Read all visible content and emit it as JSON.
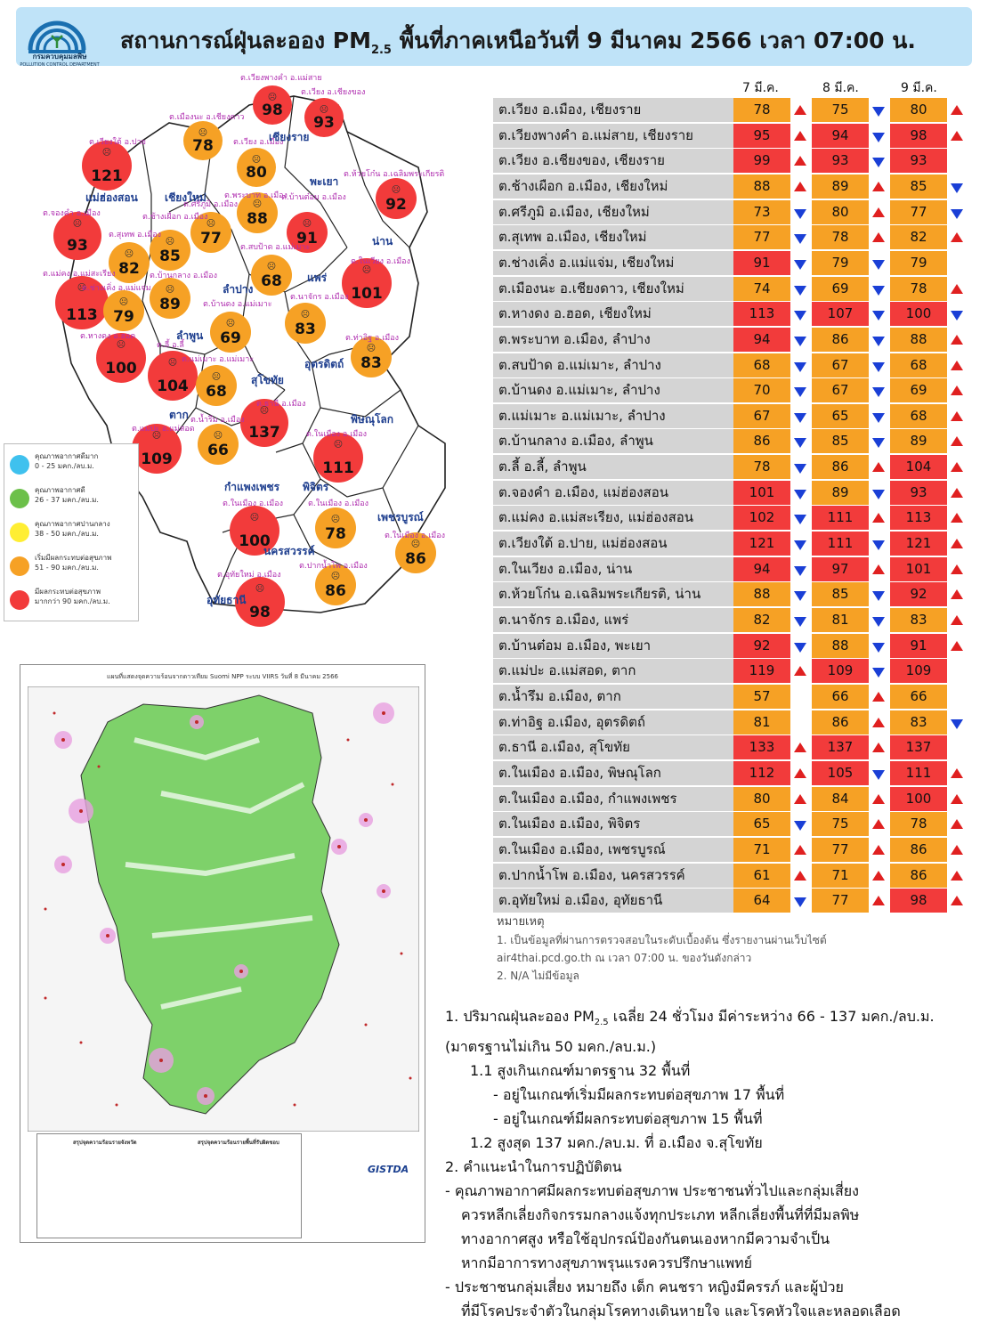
{
  "header": {
    "title_pre": "สถานการณ์ฝุ่นละออง PM",
    "title_sub": "2.5",
    "title_post": " พื้นที่ภาคเหนือวันที่ 9 มีนาคม 2566 เวลา 07:00 น.",
    "logo_text": "กรมควบคุมมลพิษ",
    "logo_text_en": "POLLUTION CONTROL DEPARTMENT"
  },
  "colors": {
    "red": "#f23b3b",
    "orange": "#f6a125",
    "green": "#6cc04a",
    "yellow": "#ffee33",
    "blue": "#3fc1ee"
  },
  "map": {
    "provinces": [
      "เชียงราย",
      "พะเยา",
      "แม่ฮ่องสอน",
      "เชียงใหม่",
      "น่าน",
      "แพร่",
      "ลำปาง",
      "ลำพูน",
      "อุตรดิตถ์",
      "สุโขทัย",
      "ตาก",
      "พิษณุโลก",
      "กำแพงเพชร",
      "พิจิตร",
      "เพชรบูรณ์",
      "นครสวรรค์",
      "อุทัยธานี"
    ],
    "stations": [
      {
        "label": "ต.เวียงพางคำ อ.แม่สาย",
        "value": "98",
        "level": "red"
      },
      {
        "label": "ต.เวียง อ.เชียงของ",
        "value": "93",
        "level": "red"
      },
      {
        "label": "ต.เมืองนะ อ.เชียงดาว",
        "value": "78",
        "level": "orange"
      },
      {
        "label": "ต.เวียง อ.เมือง",
        "value": "80",
        "level": "orange"
      },
      {
        "label": "ต.เวียงใต้ อ.ปาย",
        "value": "121",
        "level": "red"
      },
      {
        "label": "ต.ห้วยโก๋น อ.เฉลิมพระเกียรติ",
        "value": "92",
        "level": "red"
      },
      {
        "label": "ต.พระบาท อ.เมือง",
        "value": "88",
        "level": "orange"
      },
      {
        "label": "ต.บ้านต๋อม อ.เมือง",
        "value": "91",
        "level": "red"
      },
      {
        "label": "ต.ศรีภูมิ อ.เมือง",
        "value": "77",
        "level": "orange"
      },
      {
        "label": "ต.ช้างเผือก อ.เมือง",
        "value": "85",
        "level": "orange"
      },
      {
        "label": "ต.จองคำ อ.เมือง",
        "value": "93",
        "level": "red"
      },
      {
        "label": "ต.สุเทพ อ.เมือง",
        "value": "82",
        "level": "orange"
      },
      {
        "label": "ต.สบป้าด อ.แม่เมาะ",
        "value": "68",
        "level": "orange"
      },
      {
        "label": "ต.ในเวียง อ.เมือง",
        "value": "101",
        "level": "red"
      },
      {
        "label": "ต.แม่คง อ.แม่สะเรียง",
        "value": "113",
        "level": "red"
      },
      {
        "label": "ต.ช่างเคิ่ง อ.แม่แจ่ม",
        "value": "79",
        "level": "orange"
      },
      {
        "label": "ต.บ้านกลาง อ.เมือง",
        "value": "89",
        "level": "orange"
      },
      {
        "label": "ต.บ้านดง อ.แม่เมาะ",
        "value": "69",
        "level": "orange"
      },
      {
        "label": "ต.นาจักร อ.เมือง",
        "value": "83",
        "level": "orange"
      },
      {
        "label": "ต.ท่าอิฐ อ.เมือง",
        "value": "83",
        "level": "orange"
      },
      {
        "label": "ต.หางดง อ.ฮอด",
        "value": "100",
        "level": "red"
      },
      {
        "label": "ต.ลี้ อ.ลี้",
        "value": "104",
        "level": "red"
      },
      {
        "label": "ต.แม่เมาะ อ.แม่เมาะ",
        "value": "68",
        "level": "orange"
      },
      {
        "label": "ต.ธานี อ.เมือง",
        "value": "137",
        "level": "red"
      },
      {
        "label": "ต.น้ำรึม อ.เมือง",
        "value": "66",
        "level": "orange"
      },
      {
        "label": "ต.แม่ปะ อ.แม่สอด",
        "value": "109",
        "level": "red"
      },
      {
        "label": "ต.ในเมือง อ.เมือง",
        "value": "111",
        "level": "red"
      },
      {
        "label": "ต.ในเมือง อ.เมือง",
        "value": "100",
        "level": "red"
      },
      {
        "label": "ต.ในเมือง อ.เมือง",
        "value": "78",
        "level": "orange"
      },
      {
        "label": "ต.ในเมือง อ.เมือง",
        "value": "86",
        "level": "orange"
      },
      {
        "label": "ต.ปากน้ำโพ อ.เมือง",
        "value": "86",
        "level": "orange"
      },
      {
        "label": "ต.อุทัยใหม่ อ.เมือง",
        "value": "98",
        "level": "red"
      }
    ],
    "legend": [
      {
        "title": "คุณภาพอากาศดีมาก",
        "range": "0 - 25 มคก./ลบ.ม."
      },
      {
        "title": "คุณภาพอากาศดี",
        "range": "26 - 37 มคก./ลบ.ม."
      },
      {
        "title": "คุณภาพอากาศปานกลาง",
        "range": "38 - 50 มคก./ลบ.ม."
      },
      {
        "title": "เริ่มมีผลกระทบต่อสุขภาพ",
        "range": "51 - 90 มคก./ลบ.ม."
      },
      {
        "title": "มีผลกระทบต่อสุขภาพ",
        "range": "มากกว่า 90 มคก./ลบ.ม."
      }
    ]
  },
  "hotspot_map": {
    "title": "แผนที่แสดงจุดความร้อนจากดาวเทียม Suomi NPP ระบบ VIIRS วันที่ 8 มีนาคม 2566",
    "left_summary_title": "สรุปจุดความร้อนรายจังหวัด",
    "right_summary_title": "สรุปจุดความร้อนรายพื้นที่รับผิดชอบ",
    "credit": "GISTDA",
    "legend_title": "สัญลักษณ์"
  },
  "table": {
    "headers": [
      "7 มี.ค.",
      "8 มี.ค.",
      "9 มี.ค."
    ],
    "rows": [
      {
        "name": "ต.เวียง อ.เมือง, เชียงราย",
        "v": [
          [
            "78",
            "orange",
            "up"
          ],
          [
            "75",
            "orange",
            "down"
          ],
          [
            "80",
            "orange",
            "up"
          ]
        ]
      },
      {
        "name": "ต.เวียงพางคำ อ.แม่สาย, เชียงราย",
        "v": [
          [
            "95",
            "red",
            "up"
          ],
          [
            "94",
            "red",
            "down"
          ],
          [
            "98",
            "red",
            "up"
          ]
        ]
      },
      {
        "name": "ต.เวียง อ.เชียงของ, เชียงราย",
        "v": [
          [
            "99",
            "red",
            "up"
          ],
          [
            "93",
            "red",
            "down"
          ],
          [
            "93",
            "red",
            ""
          ]
        ]
      },
      {
        "name": "ต.ช้างเผือก อ.เมือง, เชียงใหม่",
        "v": [
          [
            "88",
            "orange",
            "up"
          ],
          [
            "89",
            "orange",
            "up"
          ],
          [
            "85",
            "orange",
            "down"
          ]
        ]
      },
      {
        "name": "ต.ศรีภูมิ อ.เมือง, เชียงใหม่",
        "v": [
          [
            "73",
            "orange",
            "down"
          ],
          [
            "80",
            "orange",
            "up"
          ],
          [
            "77",
            "orange",
            "down"
          ]
        ]
      },
      {
        "name": "ต.สุเทพ อ.เมือง, เชียงใหม่",
        "v": [
          [
            "77",
            "orange",
            "down"
          ],
          [
            "78",
            "orange",
            "up"
          ],
          [
            "82",
            "orange",
            "up"
          ]
        ]
      },
      {
        "name": "ต.ช่างเคิ่ง อ.แม่แจ่ม, เชียงใหม่",
        "v": [
          [
            "91",
            "red",
            "down"
          ],
          [
            "79",
            "orange",
            "down"
          ],
          [
            "79",
            "orange",
            ""
          ]
        ]
      },
      {
        "name": "ต.เมืองนะ อ.เชียงดาว, เชียงใหม่",
        "v": [
          [
            "74",
            "orange",
            "down"
          ],
          [
            "69",
            "orange",
            "down"
          ],
          [
            "78",
            "orange",
            "up"
          ]
        ]
      },
      {
        "name": "ต.หางดง อ.ฮอด, เชียงใหม่",
        "v": [
          [
            "113",
            "red",
            "down"
          ],
          [
            "107",
            "red",
            "down"
          ],
          [
            "100",
            "red",
            "down"
          ]
        ]
      },
      {
        "name": "ต.พระบาท อ.เมือง, ลำปาง",
        "v": [
          [
            "94",
            "red",
            "down"
          ],
          [
            "86",
            "orange",
            "down"
          ],
          [
            "88",
            "orange",
            "up"
          ]
        ]
      },
      {
        "name": "ต.สบป้าด อ.แม่เมาะ, ลำปาง",
        "v": [
          [
            "68",
            "orange",
            "down"
          ],
          [
            "67",
            "orange",
            "down"
          ],
          [
            "68",
            "orange",
            "up"
          ]
        ]
      },
      {
        "name": "ต.บ้านดง อ.แม่เมาะ, ลำปาง",
        "v": [
          [
            "70",
            "orange",
            "down"
          ],
          [
            "67",
            "orange",
            "down"
          ],
          [
            "69",
            "orange",
            "up"
          ]
        ]
      },
      {
        "name": "ต.แม่เมาะ อ.แม่เมาะ, ลำปาง",
        "v": [
          [
            "67",
            "orange",
            "down"
          ],
          [
            "65",
            "orange",
            "down"
          ],
          [
            "68",
            "orange",
            "up"
          ]
        ]
      },
      {
        "name": "ต.บ้านกลาง อ.เมือง, ลำพูน",
        "v": [
          [
            "86",
            "orange",
            "down"
          ],
          [
            "85",
            "orange",
            "down"
          ],
          [
            "89",
            "orange",
            "up"
          ]
        ]
      },
      {
        "name": "ต.ลี้ อ.ลี้, ลำพูน",
        "v": [
          [
            "78",
            "orange",
            "down"
          ],
          [
            "86",
            "orange",
            "up"
          ],
          [
            "104",
            "red",
            "up"
          ]
        ]
      },
      {
        "name": "ต.จองคำ อ.เมือง, แม่ฮ่องสอน",
        "v": [
          [
            "101",
            "red",
            "down"
          ],
          [
            "89",
            "orange",
            "down"
          ],
          [
            "93",
            "red",
            "up"
          ]
        ]
      },
      {
        "name": "ต.แม่คง อ.แม่สะเรียง, แม่ฮ่องสอน",
        "v": [
          [
            "102",
            "red",
            "down"
          ],
          [
            "111",
            "red",
            "up"
          ],
          [
            "113",
            "red",
            "up"
          ]
        ]
      },
      {
        "name": "ต.เวียงใต้ อ.ปาย, แม่ฮ่องสอน",
        "v": [
          [
            "121",
            "red",
            "down"
          ],
          [
            "111",
            "red",
            "down"
          ],
          [
            "121",
            "red",
            "up"
          ]
        ]
      },
      {
        "name": "ต.ในเวียง อ.เมือง, น่าน",
        "v": [
          [
            "94",
            "red",
            "down"
          ],
          [
            "97",
            "red",
            "up"
          ],
          [
            "101",
            "red",
            "up"
          ]
        ]
      },
      {
        "name": "ต.ห้วยโก๋น อ.เฉลิมพระเกียรติ, น่าน",
        "v": [
          [
            "88",
            "orange",
            "down"
          ],
          [
            "85",
            "orange",
            "down"
          ],
          [
            "92",
            "red",
            "up"
          ]
        ]
      },
      {
        "name": "ต.นาจักร อ.เมือง, แพร่",
        "v": [
          [
            "82",
            "orange",
            "down"
          ],
          [
            "81",
            "orange",
            "down"
          ],
          [
            "83",
            "orange",
            "up"
          ]
        ]
      },
      {
        "name": "ต.บ้านต๋อม อ.เมือง, พะเยา",
        "v": [
          [
            "92",
            "red",
            "down"
          ],
          [
            "88",
            "orange",
            "down"
          ],
          [
            "91",
            "red",
            "up"
          ]
        ]
      },
      {
        "name": "ต.แม่ปะ อ.แม่สอด, ตาก",
        "v": [
          [
            "119",
            "red",
            "up"
          ],
          [
            "109",
            "red",
            "down"
          ],
          [
            "109",
            "red",
            ""
          ]
        ]
      },
      {
        "name": "ต.น้ำรึม อ.เมือง, ตาก",
        "v": [
          [
            "57",
            "orange",
            ""
          ],
          [
            "66",
            "orange",
            "up"
          ],
          [
            "66",
            "orange",
            ""
          ]
        ]
      },
      {
        "name": "ต.ท่าอิฐ อ.เมือง, อุตรดิตถ์",
        "v": [
          [
            "81",
            "orange",
            ""
          ],
          [
            "86",
            "orange",
            "up"
          ],
          [
            "83",
            "orange",
            "down"
          ]
        ]
      },
      {
        "name": "ต.ธานี อ.เมือง, สุโขทัย",
        "v": [
          [
            "133",
            "red",
            "up"
          ],
          [
            "137",
            "red",
            "up"
          ],
          [
            "137",
            "red",
            ""
          ]
        ]
      },
      {
        "name": "ต.ในเมือง อ.เมือง, พิษณุโลก",
        "v": [
          [
            "112",
            "red",
            "up"
          ],
          [
            "105",
            "red",
            "down"
          ],
          [
            "111",
            "red",
            "up"
          ]
        ]
      },
      {
        "name": "ต.ในเมือง อ.เมือง, กำแพงเพชร",
        "v": [
          [
            "80",
            "orange",
            "up"
          ],
          [
            "84",
            "orange",
            "up"
          ],
          [
            "100",
            "red",
            "up"
          ]
        ]
      },
      {
        "name": "ต.ในเมือง อ.เมือง, พิจิตร",
        "v": [
          [
            "65",
            "orange",
            "down"
          ],
          [
            "75",
            "orange",
            "up"
          ],
          [
            "78",
            "orange",
            "up"
          ]
        ]
      },
      {
        "name": "ต.ในเมือง อ.เมือง, เพชรบูรณ์",
        "v": [
          [
            "71",
            "orange",
            "up"
          ],
          [
            "77",
            "orange",
            "up"
          ],
          [
            "86",
            "orange",
            "up"
          ]
        ]
      },
      {
        "name": "ต.ปากน้ำโพ อ.เมือง, นครสวรรค์",
        "v": [
          [
            "61",
            "orange",
            "up"
          ],
          [
            "71",
            "orange",
            "up"
          ],
          [
            "86",
            "orange",
            "up"
          ]
        ]
      },
      {
        "name": "ต.อุทัยใหม่ อ.เมือง, อุทัยธานี",
        "v": [
          [
            "64",
            "orange",
            "down"
          ],
          [
            "77",
            "orange",
            "up"
          ],
          [
            "98",
            "red",
            "up"
          ]
        ]
      }
    ]
  },
  "notes": {
    "title": "หมายเหตุ",
    "line1": "1. เป็นข้อมูลที่ผ่านการตรวจสอบในระดับเบื้องต้น ซึ่งรายงานผ่านเว็บไซต์",
    "line2": "air4thai.pcd.go.th ณ เวลา 07:00 น. ของวันดังกล่าว",
    "line3": "2. N/A ไม่มีข้อมูล"
  },
  "summary": {
    "l1a": "1. ปริมาณฝุ่นละออง PM",
    "l1sub": "2.5",
    "l1b": " เฉลี่ย 24 ชั่วโมง มีค่าระหว่าง 66 - 137 มคก./ลบ.ม.",
    "l2": "(มาตรฐานไม่เกิน 50 มคก./ลบ.ม.)",
    "l3": "1.1 สูงเกินเกณฑ์มาตรฐาน 32 พื้นที่",
    "l4": "- อยู่ในเกณฑ์เริ่มมีผลกระทบต่อสุขภาพ 17 พื้นที่",
    "l5": "- อยู่ในเกณฑ์มีผลกระทบต่อสุขภาพ 15 พื้นที่",
    "l6": "1.2 สูงสุด 137 มคก./ลบ.ม. ที่ อ.เมือง จ.สุโขทัย",
    "l7": "2. คำแนะนำในการปฏิบัติตน",
    "l8": "- คุณภาพอากาศมีผลกระทบต่อสุขภาพ ประชาชนทั่วไปและกลุ่มเสี่ยง",
    "l9": "ควรหลีกเลี่ยงกิจกรรมกลางแจ้งทุกประเภท หลีกเลี่ยงพื้นที่ที่มีมลพิษ",
    "l10": "ทางอากาศสูง หรือใช้อุปกรณ์ป้องกันตนเองหากมีความจำเป็น",
    "l11": "หากมีอาการทางสุขภาพรุนแรงควรปรึกษาแพทย์",
    "l12": "- ประชาชนกลุ่มเสี่ยง หมายถึง เด็ก คนชรา หญิงมีครรภ์ และผู้ป่วย",
    "l13": "ที่มีโรคประจำตัวในกลุ่มโรคทางเดินหายใจ และโรคหัวใจและหลอดเลือด"
  }
}
